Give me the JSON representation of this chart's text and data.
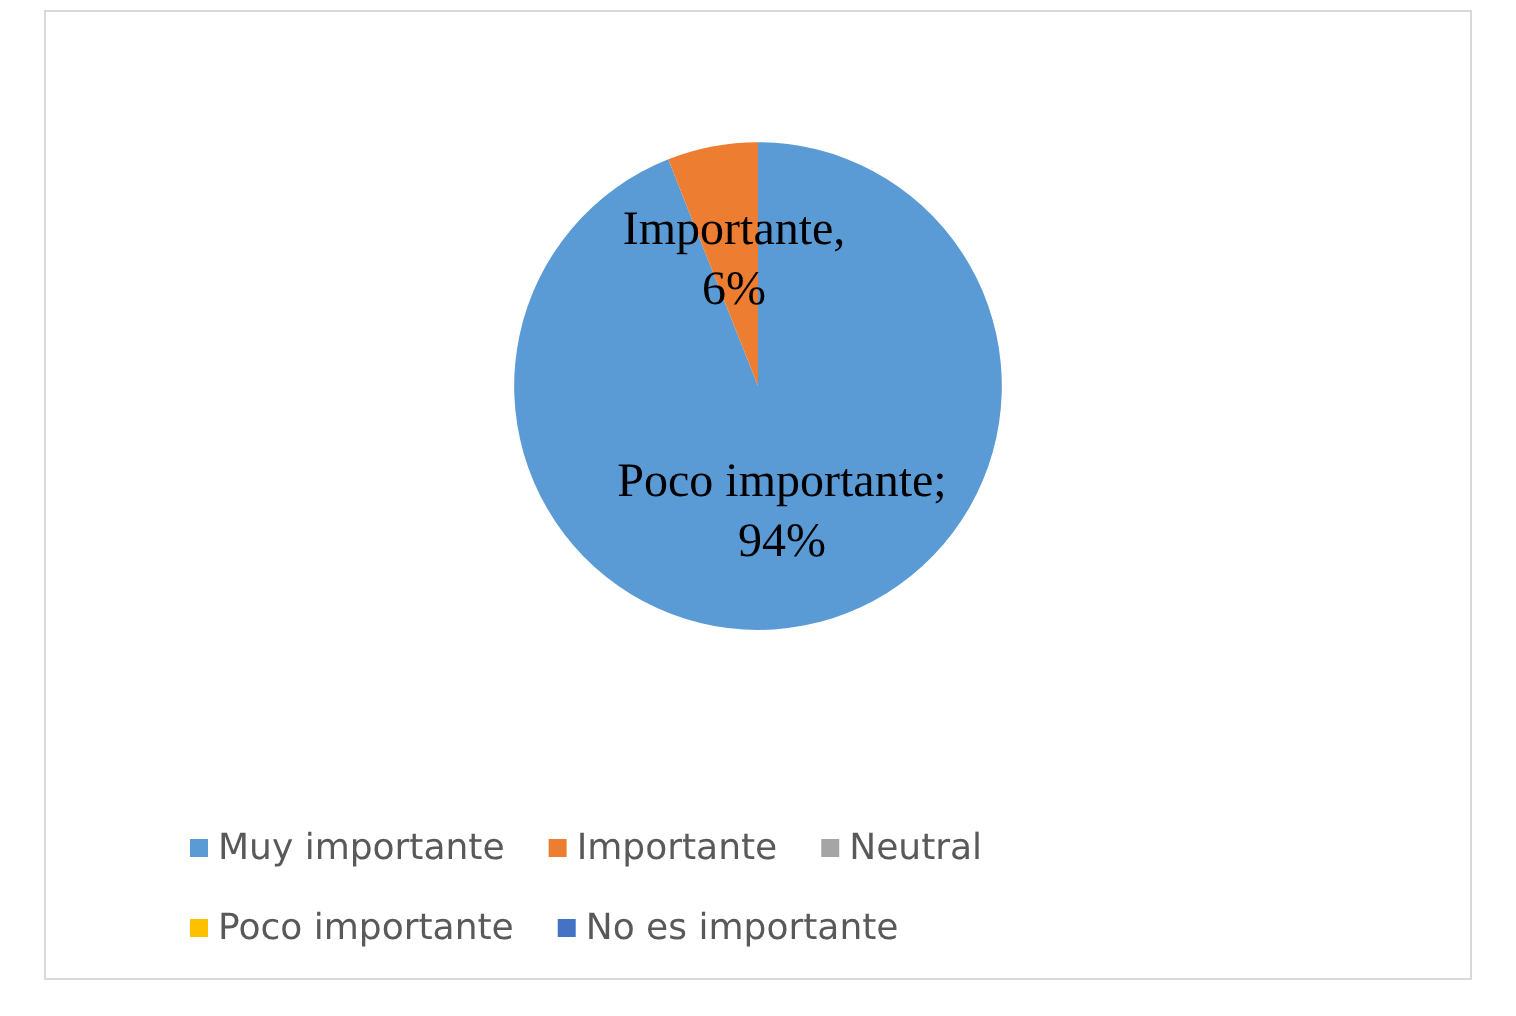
{
  "chart_data": {
    "type": "pie",
    "categories": [
      "Muy importante",
      "Importante",
      "Neutral",
      "Poco importante",
      "No es importante"
    ],
    "values": [
      94,
      6,
      0,
      0,
      0
    ],
    "colors": [
      "#5b9bd5",
      "#ed7d31",
      "#a5a5a5",
      "#ffc000",
      "#4472c4"
    ],
    "value_labels": [
      "Poco importante; 94%",
      "Importante, 6%",
      null,
      null,
      null
    ],
    "legend": "bottom"
  }
}
